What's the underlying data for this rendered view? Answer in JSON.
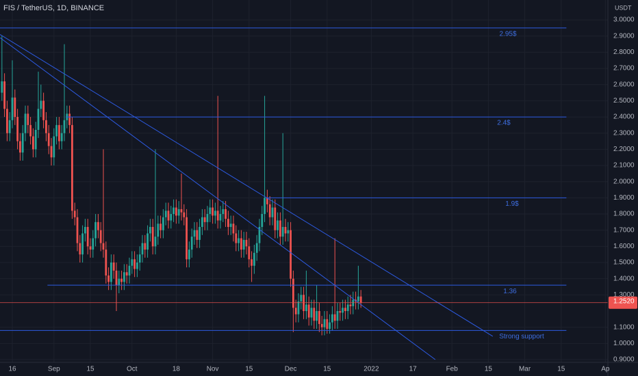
{
  "chart_data": {
    "type": "candlestick",
    "title": "FIS / TetherUS, 1D, BINANCE",
    "currency": "USDT",
    "open": [
      2.55,
      2.62,
      2.45,
      2.3,
      2.38,
      2.52,
      2.4,
      2.25,
      2.18,
      2.3,
      2.42,
      2.35,
      2.28,
      2.2,
      2.32,
      2.45,
      2.5,
      2.38,
      2.3,
      2.22,
      2.15,
      2.28,
      2.35,
      2.25,
      2.3,
      2.38,
      2.42,
      2.35,
      1.82,
      1.78,
      1.62,
      1.55,
      1.68,
      1.72,
      1.6,
      1.58,
      1.65,
      1.75,
      1.7,
      1.62,
      1.58,
      1.42,
      1.38,
      1.5,
      1.45,
      1.36,
      1.4,
      1.38,
      1.44,
      1.42,
      1.48,
      1.52,
      1.46,
      1.5,
      1.55,
      1.62,
      1.58,
      1.68,
      1.72,
      1.6,
      1.66,
      1.74,
      1.7,
      1.78,
      1.82,
      1.76,
      1.8,
      1.84,
      1.79,
      1.83,
      1.81,
      1.78,
      1.52,
      1.58,
      1.66,
      1.7,
      1.64,
      1.72,
      1.78,
      1.75,
      1.8,
      1.84,
      1.79,
      1.82,
      1.76,
      1.8,
      1.83,
      1.77,
      1.72,
      1.74,
      1.68,
      1.62,
      1.65,
      1.58,
      1.64,
      1.6,
      1.52,
      1.48,
      1.56,
      1.62,
      1.72,
      1.8,
      1.9,
      1.86,
      1.78,
      1.84,
      1.7,
      1.76,
      1.66,
      1.72,
      1.68,
      1.7,
      1.4,
      1.22,
      1.18,
      1.26,
      1.3,
      1.2,
      1.24,
      1.16,
      1.22,
      1.14,
      1.2,
      1.12,
      1.1,
      1.15,
      1.09,
      1.13,
      1.18,
      1.14,
      1.2,
      1.19,
      1.22,
      1.2,
      1.24,
      1.23,
      1.27,
      1.26,
      1.29
    ],
    "high": [
      2.9,
      2.67,
      2.5,
      2.43,
      2.75,
      2.57,
      2.45,
      2.3,
      2.35,
      2.47,
      2.47,
      2.4,
      2.33,
      2.37,
      2.68,
      2.6,
      2.55,
      2.43,
      2.35,
      2.27,
      2.33,
      2.4,
      2.4,
      2.35,
      2.85,
      2.47,
      2.47,
      2.4,
      1.87,
      1.83,
      1.67,
      1.73,
      1.77,
      1.77,
      1.65,
      1.7,
      1.8,
      1.8,
      1.75,
      2.2,
      1.63,
      1.47,
      1.55,
      1.55,
      1.5,
      1.45,
      1.45,
      1.49,
      1.49,
      1.53,
      1.57,
      1.57,
      1.55,
      1.6,
      1.67,
      1.67,
      1.73,
      1.77,
      1.77,
      2.2,
      1.79,
      1.79,
      1.83,
      1.87,
      1.87,
      1.85,
      1.89,
      1.89,
      1.88,
      2.05,
      1.86,
      1.83,
      1.63,
      1.71,
      1.75,
      1.75,
      1.77,
      1.83,
      1.83,
      1.85,
      1.89,
      1.89,
      1.87,
      2.53,
      1.85,
      1.88,
      1.88,
      1.82,
      1.79,
      1.79,
      1.73,
      1.7,
      1.7,
      1.69,
      1.69,
      1.65,
      1.57,
      1.61,
      1.67,
      1.77,
      1.85,
      2.53,
      1.95,
      1.91,
      1.89,
      1.89,
      1.81,
      1.81,
      2.3,
      1.77,
      1.75,
      1.75,
      1.45,
      1.27,
      1.31,
      1.35,
      1.35,
      1.45,
      1.29,
      1.27,
      1.27,
      1.36,
      1.25,
      1.17,
      1.2,
      1.2,
      1.18,
      1.23,
      1.65,
      1.25,
      1.25,
      1.27,
      1.27,
      1.29,
      1.3,
      1.32,
      1.32,
      1.48,
      1.33
    ],
    "low": [
      2.5,
      2.4,
      2.25,
      2.25,
      2.33,
      2.35,
      2.2,
      2.13,
      2.13,
      2.25,
      2.3,
      2.23,
      2.15,
      2.15,
      2.27,
      2.4,
      2.33,
      2.25,
      2.17,
      2.1,
      2.1,
      2.23,
      2.2,
      2.2,
      2.25,
      2.33,
      2.3,
      1.77,
      1.73,
      1.57,
      1.5,
      1.5,
      1.63,
      1.55,
      1.53,
      1.53,
      1.6,
      1.65,
      1.57,
      1.53,
      1.37,
      1.33,
      1.33,
      1.4,
      1.2,
      1.31,
      1.33,
      1.33,
      1.37,
      1.37,
      1.43,
      1.41,
      1.41,
      1.45,
      1.5,
      1.53,
      1.53,
      1.63,
      1.55,
      1.55,
      1.61,
      1.65,
      1.65,
      1.73,
      1.71,
      1.71,
      1.75,
      1.74,
      1.74,
      1.76,
      1.73,
      1.47,
      1.47,
      1.53,
      1.61,
      1.59,
      1.59,
      1.67,
      1.7,
      1.7,
      1.75,
      1.74,
      1.74,
      1.71,
      1.71,
      1.75,
      1.72,
      1.67,
      1.67,
      1.63,
      1.57,
      1.57,
      1.53,
      1.53,
      1.55,
      1.47,
      1.38,
      1.43,
      1.51,
      1.57,
      1.67,
      1.75,
      1.81,
      1.73,
      1.73,
      1.65,
      1.65,
      1.61,
      1.61,
      1.63,
      1.63,
      1.35,
      1.07,
      1.13,
      1.13,
      1.21,
      1.15,
      1.15,
      1.11,
      1.11,
      1.09,
      1.09,
      1.07,
      1.05,
      1.05,
      1.06,
      1.06,
      1.08,
      1.09,
      1.09,
      1.14,
      1.14,
      1.15,
      1.15,
      1.18,
      1.18,
      1.21,
      1.21,
      1.22
    ],
    "close": [
      2.62,
      2.45,
      2.3,
      2.38,
      2.52,
      2.4,
      2.25,
      2.18,
      2.3,
      2.42,
      2.35,
      2.28,
      2.2,
      2.32,
      2.45,
      2.5,
      2.38,
      2.3,
      2.22,
      2.15,
      2.28,
      2.35,
      2.25,
      2.3,
      2.38,
      2.42,
      2.35,
      1.82,
      1.78,
      1.62,
      1.55,
      1.68,
      1.72,
      1.6,
      1.58,
      1.65,
      1.75,
      1.7,
      1.62,
      1.58,
      1.42,
      1.38,
      1.5,
      1.45,
      1.36,
      1.4,
      1.38,
      1.44,
      1.42,
      1.48,
      1.52,
      1.46,
      1.5,
      1.55,
      1.62,
      1.58,
      1.68,
      1.72,
      1.6,
      1.66,
      1.74,
      1.7,
      1.78,
      1.82,
      1.76,
      1.8,
      1.84,
      1.79,
      1.83,
      1.81,
      1.78,
      1.52,
      1.58,
      1.66,
      1.7,
      1.64,
      1.72,
      1.78,
      1.75,
      1.8,
      1.84,
      1.79,
      1.82,
      1.76,
      1.8,
      1.83,
      1.77,
      1.72,
      1.74,
      1.68,
      1.62,
      1.65,
      1.58,
      1.64,
      1.6,
      1.52,
      1.48,
      1.56,
      1.62,
      1.72,
      1.8,
      1.9,
      1.86,
      1.78,
      1.84,
      1.7,
      1.76,
      1.66,
      1.72,
      1.68,
      1.7,
      1.4,
      1.22,
      1.18,
      1.26,
      1.3,
      1.2,
      1.24,
      1.16,
      1.22,
      1.14,
      1.2,
      1.12,
      1.1,
      1.15,
      1.09,
      1.13,
      1.18,
      1.14,
      1.2,
      1.19,
      1.22,
      1.2,
      1.24,
      1.23,
      1.27,
      1.26,
      1.29,
      1.252
    ],
    "last_price_label": "1.2520",
    "up_color": "#26a69a",
    "down_color": "#ef5350",
    "line_color": "#2d5be3",
    "levels": [
      {
        "label": "2.95$",
        "value": 2.95,
        "x": [
          -0.74,
          217
        ]
      },
      {
        "label": "2.4$",
        "value": 2.4,
        "x": [
          24.5,
          217
        ]
      },
      {
        "label": "1.9$",
        "value": 1.9,
        "x": [
          101.5,
          217
        ]
      },
      {
        "label": "1.36",
        "value": 1.36,
        "x": [
          17.5,
          217
        ]
      },
      {
        "label": "Strong support",
        "value": 1.08,
        "x": [
          -0.74,
          217
        ]
      }
    ],
    "trendlines": [
      {
        "x": [
          -0.74,
          166.6
        ],
        "y": [
          2.89,
          0.9
        ]
      },
      {
        "x": [
          -0.74,
          188.7
        ],
        "y": [
          2.91,
          1.044
        ]
      }
    ],
    "xlim": [
      -0.74,
      232.95
    ],
    "ylim": [
      0.883,
      3.123
    ],
    "xticks": [
      {
        "value": 4,
        "label": "16"
      },
      {
        "value": 20,
        "label": "Sep"
      },
      {
        "value": 34,
        "label": "15"
      },
      {
        "value": 50,
        "label": "Oct"
      },
      {
        "value": 67,
        "label": "18"
      },
      {
        "value": 81,
        "label": "Nov"
      },
      {
        "value": 95,
        "label": "15"
      },
      {
        "value": 111,
        "label": "Dec"
      },
      {
        "value": 125,
        "label": "15"
      },
      {
        "value": 142,
        "label": "2022"
      },
      {
        "value": 158,
        "label": "17"
      },
      {
        "value": 173,
        "label": "Feb"
      },
      {
        "value": 187,
        "label": "15"
      },
      {
        "value": 201,
        "label": "Mar"
      },
      {
        "value": 215,
        "label": "15"
      },
      {
        "value": 232,
        "label": "Ap"
      }
    ],
    "yticks": [
      {
        "value": 3.0,
        "label": "3.0000"
      },
      {
        "value": 2.9,
        "label": "2.9000"
      },
      {
        "value": 2.8,
        "label": "2.8000"
      },
      {
        "value": 2.7,
        "label": "2.7000"
      },
      {
        "value": 2.6,
        "label": "2.6000"
      },
      {
        "value": 2.5,
        "label": "2.5000"
      },
      {
        "value": 2.4,
        "label": "2.4000"
      },
      {
        "value": 2.3,
        "label": "2.3000"
      },
      {
        "value": 2.2,
        "label": "2.2000"
      },
      {
        "value": 2.1,
        "label": "2.1000"
      },
      {
        "value": 2.0,
        "label": "2.0000"
      },
      {
        "value": 1.9,
        "label": "1.9000"
      },
      {
        "value": 1.8,
        "label": "1.8000"
      },
      {
        "value": 1.7,
        "label": "1.7000"
      },
      {
        "value": 1.6,
        "label": "1.6000"
      },
      {
        "value": 1.5,
        "label": "1.5000"
      },
      {
        "value": 1.4,
        "label": "1.4000"
      },
      {
        "value": 1.3,
        "label": "1.3000"
      },
      {
        "value": 1.1,
        "label": "1.1000"
      },
      {
        "value": 1.0,
        "label": "1.0000"
      },
      {
        "value": 0.9,
        "label": "0.9000"
      }
    ],
    "grid": true
  }
}
